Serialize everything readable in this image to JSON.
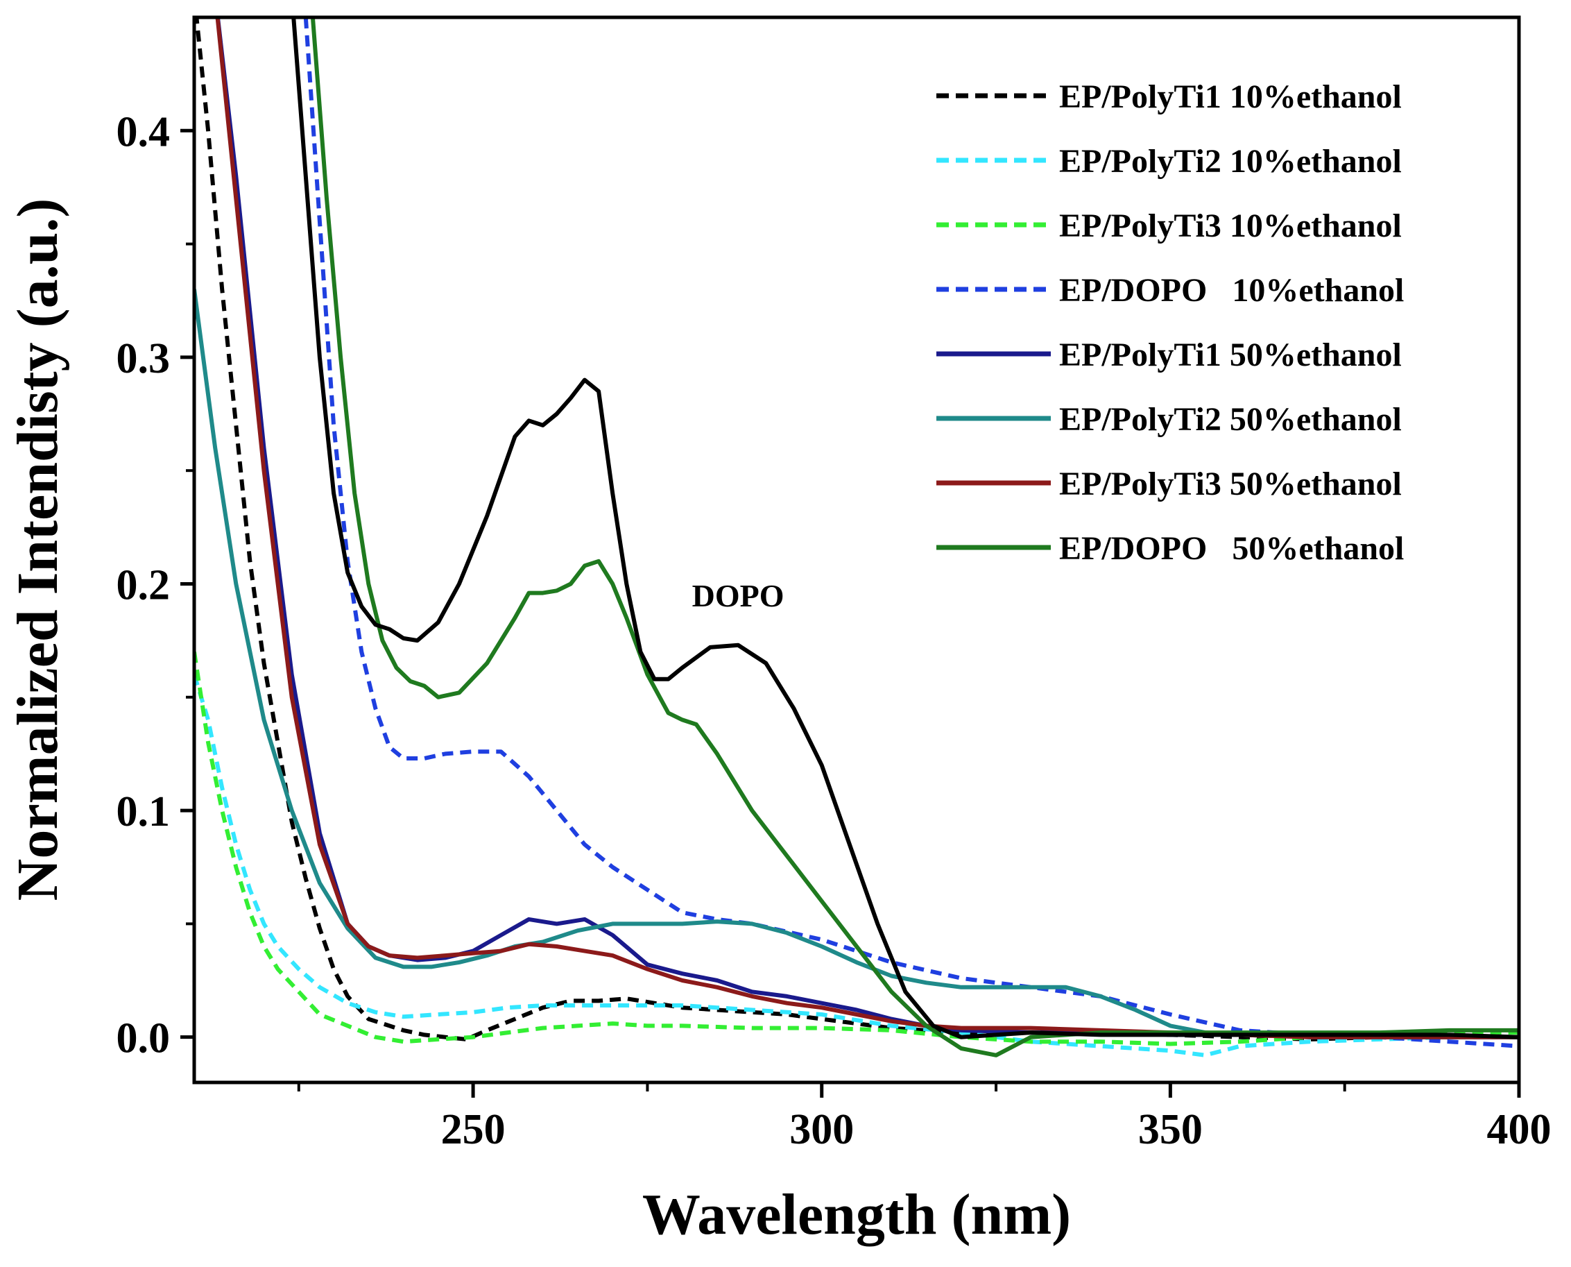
{
  "chart_data": {
    "type": "line",
    "title": "",
    "xlabel": "Wavelength (nm)",
    "ylabel": "Normalized Intendisty (a.u.)",
    "xlim": [
      210,
      400
    ],
    "ylim": [
      -0.02,
      0.45
    ],
    "x_ticks": [
      250,
      300,
      350,
      400
    ],
    "x_tick_labels": [
      "250",
      "300",
      "350",
      "400"
    ],
    "x_minor_ticks": [
      225,
      275,
      325,
      375
    ],
    "y_ticks": [
      0.0,
      0.1,
      0.2,
      0.3,
      0.4
    ],
    "y_tick_labels": [
      "0.0",
      "0.1",
      "0.2",
      "0.3",
      "0.4"
    ],
    "grid": false,
    "legend_position": "top-right",
    "annotations": [
      {
        "text": "DOPO",
        "x": 288,
        "y": 0.19
      }
    ],
    "series": [
      {
        "name": "EP/PolyTi1 10%ethanol",
        "color": "#000000",
        "dash": "dashed",
        "x": [
          210,
          212,
          214,
          216,
          218,
          220,
          222,
          224,
          226,
          228,
          230,
          232,
          235,
          238,
          240,
          243,
          246,
          249,
          252,
          256,
          260,
          264,
          268,
          272,
          276,
          280,
          285,
          290,
          295,
          300,
          305,
          310,
          315,
          320,
          330,
          340,
          350,
          360,
          370,
          380,
          390,
          400
        ],
        "y": [
          0.46,
          0.4,
          0.33,
          0.27,
          0.21,
          0.165,
          0.13,
          0.095,
          0.07,
          0.048,
          0.03,
          0.018,
          0.008,
          0.005,
          0.003,
          0.001,
          0.0,
          -0.001,
          0.003,
          0.008,
          0.013,
          0.016,
          0.016,
          0.017,
          0.015,
          0.013,
          0.012,
          0.011,
          0.01,
          0.008,
          0.006,
          0.004,
          0.003,
          0.002,
          0.002,
          0.002,
          0.001,
          0.0,
          -0.001,
          0.0,
          0.0,
          0.0
        ]
      },
      {
        "name": "EP/PolyTi2 10%ethanol",
        "color": "#33e6ff",
        "dash": "dashed",
        "x": [
          210,
          212,
          214,
          216,
          218,
          220,
          222,
          225,
          228,
          232,
          236,
          240,
          245,
          250,
          255,
          260,
          265,
          270,
          275,
          280,
          285,
          290,
          300,
          310,
          320,
          330,
          340,
          350,
          355,
          360,
          370,
          380,
          390,
          400
        ],
        "y": [
          0.16,
          0.14,
          0.11,
          0.085,
          0.065,
          0.05,
          0.04,
          0.03,
          0.022,
          0.015,
          0.011,
          0.009,
          0.01,
          0.011,
          0.013,
          0.014,
          0.014,
          0.014,
          0.014,
          0.014,
          0.013,
          0.012,
          0.01,
          0.005,
          0.002,
          -0.002,
          -0.004,
          -0.006,
          -0.008,
          -0.004,
          -0.002,
          -0.001,
          0.0,
          0.0
        ]
      },
      {
        "name": "EP/PolyTi3 10%ethanol",
        "color": "#33ee33",
        "dash": "dashed",
        "x": [
          210,
          212,
          214,
          216,
          218,
          220,
          222,
          225,
          228,
          232,
          236,
          240,
          245,
          250,
          255,
          260,
          265,
          270,
          275,
          280,
          290,
          300,
          310,
          320,
          330,
          340,
          350,
          360,
          370,
          380,
          390,
          400
        ],
        "y": [
          0.17,
          0.13,
          0.1,
          0.075,
          0.055,
          0.04,
          0.03,
          0.02,
          0.01,
          0.005,
          0.0,
          -0.002,
          -0.001,
          0.0,
          0.002,
          0.004,
          0.005,
          0.006,
          0.005,
          0.005,
          0.004,
          0.004,
          0.003,
          0.0,
          -0.002,
          -0.002,
          -0.003,
          -0.002,
          0.0,
          0.001,
          0.002,
          0.002
        ]
      },
      {
        "name": "EP/DOPO   10%ethanol",
        "color": "#1f3fe0",
        "dash": "dashed",
        "x": [
          226,
          228,
          230,
          232,
          234,
          236,
          238,
          240,
          243,
          246,
          250,
          254,
          258,
          262,
          266,
          270,
          275,
          280,
          285,
          290,
          300,
          310,
          320,
          330,
          340,
          350,
          360,
          370,
          380,
          390,
          400
        ],
        "y": [
          0.45,
          0.36,
          0.27,
          0.21,
          0.17,
          0.145,
          0.128,
          0.123,
          0.123,
          0.125,
          0.126,
          0.126,
          0.115,
          0.1,
          0.085,
          0.075,
          0.065,
          0.055,
          0.052,
          0.05,
          0.043,
          0.033,
          0.026,
          0.022,
          0.018,
          0.01,
          0.003,
          0.001,
          0.0,
          -0.002,
          -0.004
        ]
      },
      {
        "name": "EP/PolyTi1 50%ethanol",
        "color": "#1a1a8c",
        "dash": "solid",
        "x": [
          213,
          216,
          220,
          224,
          228,
          232,
          235,
          238,
          242,
          246,
          250,
          254,
          258,
          262,
          266,
          270,
          275,
          280,
          285,
          290,
          295,
          300,
          305,
          310,
          315,
          320,
          330,
          340,
          350,
          360,
          370,
          380,
          390,
          400
        ],
        "y": [
          0.46,
          0.38,
          0.26,
          0.16,
          0.09,
          0.05,
          0.04,
          0.036,
          0.034,
          0.035,
          0.038,
          0.045,
          0.052,
          0.05,
          0.052,
          0.045,
          0.032,
          0.028,
          0.025,
          0.02,
          0.018,
          0.015,
          0.012,
          0.008,
          0.005,
          0.003,
          0.002,
          0.002,
          0.001,
          0.001,
          0.0,
          0.0,
          0.0,
          0.0
        ]
      },
      {
        "name": "EP/PolyTi2 50%ethanol",
        "color": "#1f8a8a",
        "dash": "solid",
        "x": [
          210,
          213,
          216,
          220,
          224,
          228,
          232,
          236,
          240,
          244,
          248,
          252,
          256,
          260,
          265,
          270,
          275,
          280,
          285,
          290,
          295,
          300,
          305,
          310,
          315,
          320,
          325,
          330,
          335,
          340,
          345,
          350,
          355,
          360,
          370,
          380,
          390,
          400
        ],
        "y": [
          0.33,
          0.26,
          0.2,
          0.14,
          0.1,
          0.068,
          0.048,
          0.035,
          0.031,
          0.031,
          0.033,
          0.036,
          0.04,
          0.042,
          0.047,
          0.05,
          0.05,
          0.05,
          0.051,
          0.05,
          0.046,
          0.04,
          0.033,
          0.027,
          0.024,
          0.022,
          0.022,
          0.022,
          0.022,
          0.018,
          0.012,
          0.005,
          0.002,
          0.001,
          0.0,
          0.0,
          0.0,
          0.0
        ]
      },
      {
        "name": "EP/PolyTi3 50%ethanol",
        "color": "#8c1a1a",
        "dash": "solid",
        "x": [
          213,
          216,
          220,
          224,
          228,
          232,
          235,
          238,
          242,
          246,
          250,
          254,
          258,
          262,
          266,
          270,
          275,
          280,
          285,
          290,
          295,
          300,
          305,
          310,
          315,
          320,
          330,
          340,
          350,
          360,
          370,
          380,
          390,
          400
        ],
        "y": [
          0.46,
          0.37,
          0.25,
          0.15,
          0.085,
          0.05,
          0.04,
          0.036,
          0.035,
          0.036,
          0.037,
          0.038,
          0.041,
          0.04,
          0.038,
          0.036,
          0.03,
          0.025,
          0.022,
          0.018,
          0.015,
          0.013,
          0.01,
          0.007,
          0.005,
          0.004,
          0.004,
          0.003,
          0.002,
          0.001,
          0.0,
          0.0,
          0.0,
          0.0
        ]
      },
      {
        "name": "EP/DOPO   50%ethanol",
        "color": "#1f7a1f",
        "dash": "solid",
        "x": [
          227,
          229,
          231,
          233,
          235,
          237,
          239,
          241,
          243,
          245,
          248,
          252,
          256,
          258,
          260,
          262,
          264,
          266,
          268,
          270,
          272,
          275,
          278,
          280,
          282,
          285,
          290,
          295,
          300,
          305,
          310,
          315,
          320,
          325,
          330,
          340,
          350,
          360,
          370,
          380,
          390,
          400
        ],
        "y": [
          0.45,
          0.37,
          0.3,
          0.24,
          0.2,
          0.175,
          0.163,
          0.157,
          0.155,
          0.15,
          0.152,
          0.165,
          0.185,
          0.196,
          0.196,
          0.197,
          0.2,
          0.208,
          0.21,
          0.2,
          0.185,
          0.16,
          0.143,
          0.14,
          0.138,
          0.125,
          0.1,
          0.08,
          0.06,
          0.04,
          0.02,
          0.005,
          -0.005,
          -0.008,
          0.0,
          0.002,
          0.002,
          0.002,
          0.002,
          0.002,
          0.003,
          0.003
        ]
      },
      {
        "name": "DOPO",
        "color": "#000000",
        "dash": "solid",
        "in_legend": false,
        "x": [
          224,
          226,
          228,
          230,
          232,
          234,
          236,
          238,
          240,
          242,
          245,
          248,
          252,
          256,
          258,
          260,
          262,
          264,
          266,
          268,
          270,
          272,
          274,
          276,
          278,
          280,
          284,
          288,
          292,
          296,
          300,
          304,
          308,
          312,
          316,
          320,
          325,
          330,
          340,
          350,
          360,
          370,
          380,
          390,
          400
        ],
        "y": [
          0.46,
          0.38,
          0.3,
          0.24,
          0.205,
          0.19,
          0.182,
          0.18,
          0.176,
          0.175,
          0.183,
          0.2,
          0.23,
          0.265,
          0.272,
          0.27,
          0.275,
          0.282,
          0.29,
          0.285,
          0.24,
          0.2,
          0.17,
          0.158,
          0.158,
          0.163,
          0.172,
          0.173,
          0.165,
          0.145,
          0.12,
          0.085,
          0.05,
          0.02,
          0.005,
          0.0,
          0.001,
          0.002,
          0.001,
          0.001,
          0.001,
          0.001,
          0.001,
          0.001,
          0.0
        ]
      }
    ]
  }
}
